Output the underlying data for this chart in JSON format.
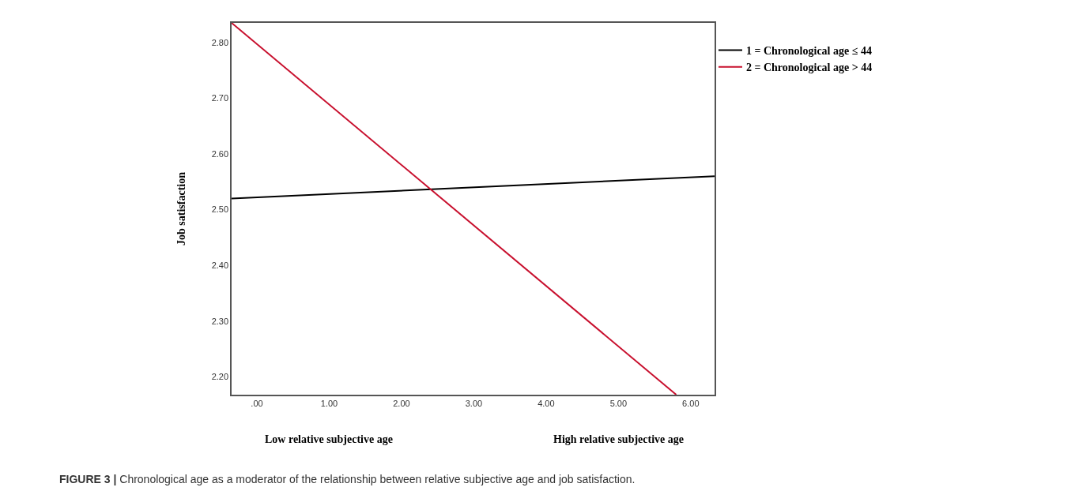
{
  "chart_data": {
    "type": "line",
    "ylabel": "Job satisfaction",
    "x": [
      -0.35,
      6.33
    ],
    "series": [
      {
        "name": "1 = Chronological age ≤ 44",
        "color": "#000000",
        "values": [
          2.52,
          2.56
        ]
      },
      {
        "name": "2 = Chronological age > 44",
        "color": "#c8102e",
        "x": [
          -0.35,
          5.8
        ],
        "values": [
          2.835,
          2.168
        ]
      }
    ],
    "xlim": [
      -0.35,
      6.33
    ],
    "xticks": [
      {
        "value": 0,
        "label": ".00"
      },
      {
        "value": 1,
        "label": "1.00"
      },
      {
        "value": 2,
        "label": "2.00"
      },
      {
        "value": 3,
        "label": "3.00"
      },
      {
        "value": 4,
        "label": "4.00"
      },
      {
        "value": 5,
        "label": "5.00"
      },
      {
        "value": 6,
        "label": "6.00"
      }
    ],
    "ylim": [
      2.168,
      2.835
    ],
    "yticks": [
      {
        "value": 2.2,
        "label": "2.20"
      },
      {
        "value": 2.3,
        "label": "2.30"
      },
      {
        "value": 2.4,
        "label": "2.40"
      },
      {
        "value": 2.5,
        "label": "2.50"
      },
      {
        "value": 2.6,
        "label": "2.60"
      },
      {
        "value": 2.7,
        "label": "2.70"
      },
      {
        "value": 2.8,
        "label": "2.80"
      }
    ],
    "legend": "top right",
    "marker": "none",
    "line_style": "solid",
    "annotations": [
      "Low relative subjective age",
      "High relative subjective age",
      "FIGURE 3 | Chronological age as a moderator of the relationship between relative subjective age and job satisfaction."
    ]
  }
}
